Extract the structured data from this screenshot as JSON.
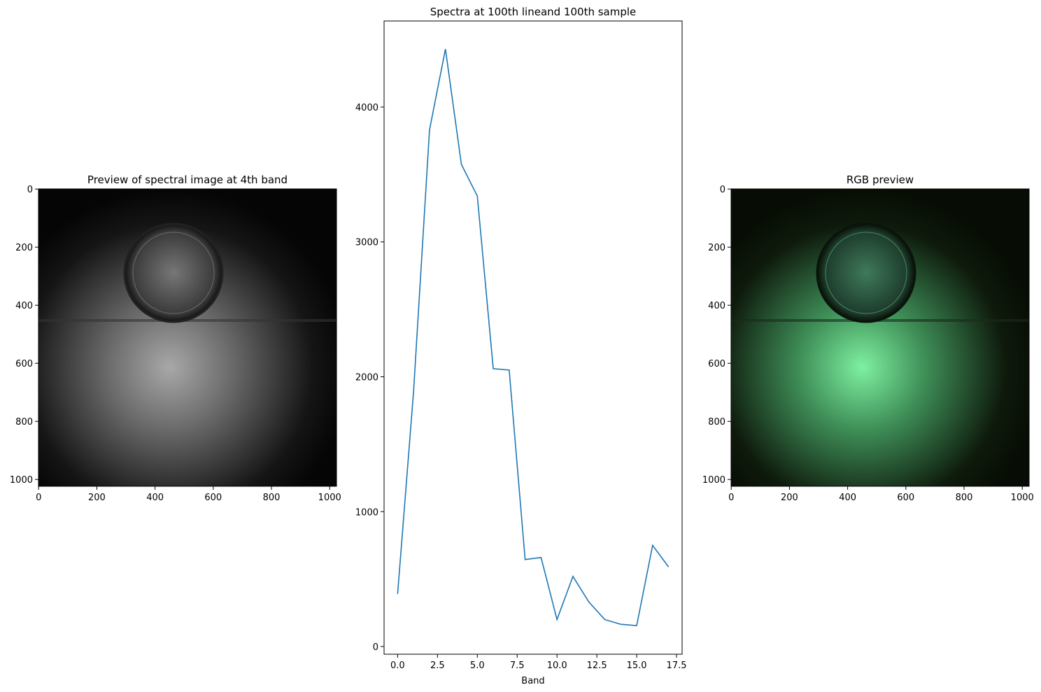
{
  "chart_data": [
    {
      "type": "image",
      "title": "Preview of spectral image at 4th band",
      "xlim": [
        -0.5,
        1023.5
      ],
      "ylim": [
        1023.5,
        -0.5
      ],
      "xticks": [
        0,
        200,
        400,
        600,
        800,
        1000
      ],
      "yticks": [
        0,
        200,
        400,
        600,
        800,
        1000
      ]
    },
    {
      "type": "line",
      "title": "Spectra at 100th lineand 100th sample",
      "xlabel": "Band",
      "x": [
        0,
        1,
        2,
        3,
        4,
        5,
        6,
        7,
        8,
        9,
        10,
        11,
        12,
        13,
        14,
        15,
        16,
        17
      ],
      "series": [
        {
          "color": "#1f77b4",
          "values": [
            390,
            1890,
            3830,
            4430,
            3575,
            3340,
            2060,
            2050,
            645,
            660,
            200,
            520,
            330,
            200,
            165,
            155,
            750,
            590
          ]
        }
      ],
      "xlim": [
        -0.85,
        17.85
      ],
      "ylim": [
        -57,
        4638
      ],
      "xticks": [
        {
          "value": 0,
          "label": "0.0"
        },
        2.5,
        {
          "value": 5,
          "label": "5.0"
        },
        7.5,
        {
          "value": 10,
          "label": "10.0"
        },
        12.5,
        {
          "value": 15,
          "label": "15.0"
        },
        17.5
      ],
      "yticks": [
        0,
        1000,
        2000,
        3000,
        4000
      ]
    },
    {
      "type": "image",
      "title": "RGB preview",
      "xlim": [
        -0.5,
        1023.5
      ],
      "ylim": [
        1023.5,
        -0.5
      ],
      "xticks": [
        0,
        200,
        400,
        600,
        800,
        1000
      ],
      "yticks": [
        0,
        200,
        400,
        600,
        800,
        1000
      ]
    }
  ]
}
